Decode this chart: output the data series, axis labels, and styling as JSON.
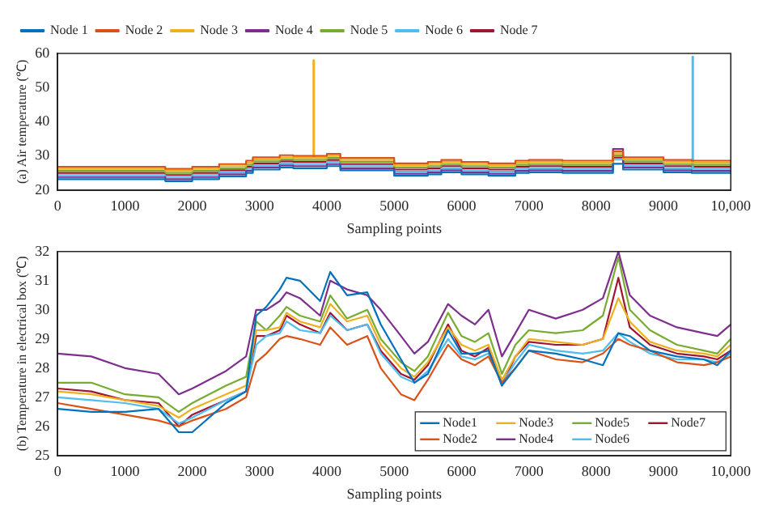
{
  "chart_data": [
    {
      "type": "step",
      "xlabel": "Sampling points",
      "ylabel": "(a) Air temperature (℃)",
      "legend": "top left",
      "grid": false,
      "xlim": [
        0,
        10000
      ],
      "xticks": [
        0,
        1000,
        2000,
        3000,
        4000,
        5000,
        6000,
        7000,
        8000,
        9000,
        {
          "value": 10000,
          "label": "10,000"
        }
      ],
      "ylim": [
        20,
        60
      ],
      "yticks": [
        20,
        30,
        40,
        50,
        60
      ],
      "x": [
        0,
        500,
        1000,
        1500,
        1600,
        2000,
        2400,
        2800,
        2900,
        3300,
        3500,
        3790,
        3800,
        3810,
        4000,
        4200,
        4600,
        5000,
        5500,
        5700,
        6000,
        6400,
        6800,
        7000,
        7500,
        8000,
        8250,
        8400,
        9000,
        9420,
        9430,
        9440,
        10000
      ],
      "series": [
        {
          "name": "Node 1",
          "color": "#0072bd",
          "values": [
            23.2,
            23.2,
            23.2,
            23.2,
            22.6,
            23.2,
            24,
            25,
            26,
            26.6,
            26.4,
            26.4,
            26.4,
            26.4,
            27,
            25.8,
            25.8,
            24.2,
            24.6,
            25.2,
            24.6,
            24.2,
            25,
            25.2,
            25,
            25,
            27.7,
            26,
            25.2,
            25,
            25,
            25,
            25
          ]
        },
        {
          "name": "Node 2",
          "color": "#d95319",
          "values": [
            26.8,
            26.8,
            26.8,
            26.8,
            26.2,
            26.8,
            27.6,
            28.6,
            29.6,
            30.2,
            30,
            30,
            30,
            30,
            30.6,
            29.4,
            29.4,
            27.8,
            28.2,
            28.8,
            28.2,
            27.8,
            28.6,
            28.8,
            28.6,
            28.6,
            31.3,
            29.6,
            28.8,
            28.6,
            28.6,
            28.6,
            28.6
          ]
        },
        {
          "name": "Node 3",
          "color": "#edb120",
          "values": [
            26.2,
            26.2,
            26.2,
            26.2,
            25.6,
            26.2,
            27,
            28,
            29,
            29.6,
            29.4,
            29.4,
            58,
            29.4,
            30,
            28.8,
            28.8,
            27.2,
            27.6,
            28.2,
            27.6,
            27.2,
            28,
            28.2,
            28,
            28,
            30.7,
            29,
            28.2,
            28,
            28,
            28,
            28
          ]
        },
        {
          "name": "Node 4",
          "color": "#7e2f8e",
          "values": [
            23.8,
            23.8,
            23.8,
            23.8,
            23.2,
            23.8,
            24.6,
            25.6,
            26.6,
            27.2,
            27,
            27,
            27,
            27,
            27.6,
            26.4,
            26.4,
            24.8,
            25.2,
            25.8,
            25.2,
            24.8,
            25.6,
            25.8,
            25.6,
            25.6,
            32,
            26.6,
            25.8,
            25.6,
            25.6,
            25.6,
            25.6
          ]
        },
        {
          "name": "Node 5",
          "color": "#77ac30",
          "values": [
            25.6,
            25.6,
            25.6,
            25.6,
            25,
            25.6,
            26.4,
            27.4,
            28.4,
            29,
            28.8,
            28.8,
            28.8,
            28.8,
            29.4,
            28.2,
            28.2,
            26.6,
            27,
            27.6,
            27,
            26.6,
            27.4,
            27.6,
            27.4,
            27.4,
            30.1,
            28.4,
            27.6,
            27.4,
            27.4,
            27.4,
            27.4
          ]
        },
        {
          "name": "Node 6",
          "color": "#4dbeee",
          "values": [
            24.4,
            24.4,
            24.4,
            24.4,
            23.8,
            24.4,
            25.2,
            26.2,
            27.2,
            27.8,
            27.6,
            27.6,
            27.6,
            27.6,
            28.2,
            27,
            27,
            25.4,
            25.8,
            26.4,
            25.8,
            25.4,
            26.2,
            26.4,
            26.2,
            26.2,
            28.9,
            27.2,
            26.4,
            26.2,
            59,
            26.2,
            26.2
          ]
        },
        {
          "name": "Node 7",
          "color": "#a2142f",
          "values": [
            25,
            25,
            25,
            25,
            24.4,
            25,
            25.8,
            26.8,
            27.8,
            28.4,
            28.2,
            28.2,
            28.2,
            28.2,
            28.8,
            27.6,
            27.6,
            26,
            26.4,
            27,
            26.4,
            26,
            26.8,
            27,
            26.8,
            26.8,
            29.5,
            27.8,
            27,
            26.8,
            26.8,
            26.8,
            26.8
          ]
        }
      ]
    },
    {
      "type": "line",
      "xlabel": "Sampling points",
      "ylabel": "(b) Temperature in electrical box (℃)",
      "legend": "bottom right",
      "grid": false,
      "xlim": [
        0,
        10000
      ],
      "xticks": [
        0,
        1000,
        2000,
        3000,
        4000,
        5000,
        6000,
        7000,
        8000,
        9000,
        {
          "value": 10000,
          "label": "10,000"
        }
      ],
      "ylim": [
        25,
        32
      ],
      "yticks": [
        25,
        26,
        27,
        28,
        29,
        30,
        31,
        32
      ],
      "x": [
        0,
        500,
        1000,
        1500,
        1800,
        2000,
        2500,
        2800,
        2950,
        3100,
        3300,
        3400,
        3600,
        3900,
        4050,
        4300,
        4600,
        4800,
        5100,
        5300,
        5500,
        5800,
        6000,
        6200,
        6400,
        6600,
        6800,
        7000,
        7400,
        7800,
        8100,
        8330,
        8500,
        8800,
        9200,
        9600,
        9800,
        10000
      ],
      "series": [
        {
          "name": "Node1",
          "color": "#0072bd",
          "values": [
            26.6,
            26.5,
            26.5,
            26.6,
            25.8,
            25.8,
            26.8,
            27.2,
            29.8,
            30.1,
            30.7,
            31.1,
            31.0,
            30.3,
            31.3,
            30.5,
            30.6,
            29.5,
            28.3,
            27.5,
            27.8,
            29.3,
            28.5,
            28.5,
            28.6,
            27.4,
            28.0,
            28.6,
            28.5,
            28.3,
            28.1,
            29.2,
            29.1,
            28.6,
            28.4,
            28.3,
            28.1,
            28.6
          ]
        },
        {
          "name": "Node2",
          "color": "#d95319",
          "values": [
            26.8,
            26.6,
            26.4,
            26.2,
            26.0,
            26.2,
            26.6,
            27.0,
            28.2,
            28.5,
            29.0,
            29.1,
            29.0,
            28.8,
            29.4,
            28.8,
            29.1,
            28.0,
            27.1,
            26.9,
            27.6,
            28.8,
            28.3,
            28.1,
            28.4,
            27.5,
            28.0,
            28.6,
            28.3,
            28.2,
            28.5,
            29.0,
            28.8,
            28.6,
            28.2,
            28.1,
            28.2,
            28.4
          ]
        },
        {
          "name": "Node3",
          "color": "#edb120",
          "values": [
            27.2,
            27.1,
            26.9,
            26.7,
            26.3,
            26.6,
            27.1,
            27.4,
            29.3,
            29.3,
            29.4,
            29.9,
            29.6,
            29.4,
            30.2,
            29.6,
            29.8,
            28.8,
            28.0,
            27.7,
            28.2,
            29.4,
            28.8,
            28.6,
            28.8,
            27.6,
            28.4,
            29.0,
            28.9,
            28.8,
            29.0,
            30.4,
            29.6,
            28.9,
            28.6,
            28.5,
            28.4,
            28.8
          ]
        },
        {
          "name": "Node4",
          "color": "#7e2f8e",
          "values": [
            28.5,
            28.4,
            28.0,
            27.8,
            27.1,
            27.3,
            27.9,
            28.4,
            30.0,
            30.0,
            30.3,
            30.6,
            30.4,
            29.8,
            31.0,
            30.7,
            30.5,
            30.0,
            29.1,
            28.5,
            28.9,
            30.2,
            29.8,
            29.5,
            30.0,
            28.4,
            29.2,
            30.0,
            29.7,
            30.0,
            30.4,
            32.0,
            30.5,
            29.8,
            29.4,
            29.2,
            29.1,
            29.5
          ]
        },
        {
          "name": "Node5",
          "color": "#77ac30",
          "values": [
            27.5,
            27.5,
            27.1,
            27.0,
            26.5,
            26.8,
            27.4,
            27.7,
            29.6,
            29.3,
            29.8,
            30.1,
            29.8,
            29.6,
            30.5,
            29.7,
            30.0,
            29.0,
            28.2,
            27.9,
            28.4,
            29.9,
            29.1,
            28.9,
            29.2,
            27.8,
            28.8,
            29.3,
            29.2,
            29.3,
            29.8,
            31.8,
            30.0,
            29.3,
            28.8,
            28.6,
            28.5,
            29.0
          ]
        },
        {
          "name": "Node6",
          "color": "#4dbeee",
          "values": [
            27.0,
            26.9,
            26.8,
            26.6,
            26.1,
            26.3,
            26.9,
            27.2,
            28.8,
            29.1,
            29.2,
            29.6,
            29.3,
            29.2,
            29.8,
            29.3,
            29.5,
            28.5,
            27.7,
            27.5,
            27.9,
            29.0,
            28.4,
            28.3,
            28.5,
            27.5,
            28.2,
            28.8,
            28.6,
            28.5,
            28.6,
            29.2,
            28.9,
            28.5,
            28.3,
            28.3,
            28.2,
            28.5
          ]
        },
        {
          "name": "Node7",
          "color": "#a2142f",
          "values": [
            27.3,
            27.2,
            26.9,
            26.8,
            26.0,
            26.4,
            26.9,
            27.2,
            29.1,
            29.1,
            29.3,
            29.8,
            29.5,
            29.2,
            29.9,
            29.3,
            29.5,
            28.6,
            27.8,
            27.6,
            28.1,
            29.5,
            28.6,
            28.4,
            28.7,
            27.4,
            28.4,
            28.9,
            28.8,
            28.8,
            29.0,
            31.1,
            29.4,
            28.8,
            28.5,
            28.4,
            28.3,
            28.6
          ]
        }
      ]
    }
  ]
}
